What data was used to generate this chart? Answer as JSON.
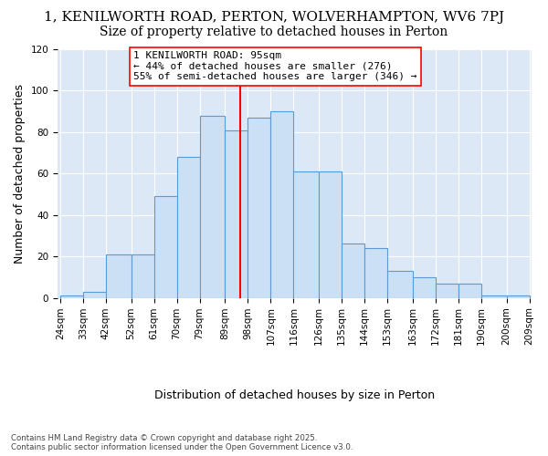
{
  "title_line1": "1, KENILWORTH ROAD, PERTON, WOLVERHAMPTON, WV6 7PJ",
  "title_line2": "Size of property relative to detached houses in Perton",
  "xlabel": "Distribution of detached houses by size in Perton",
  "ylabel": "Number of detached properties",
  "categories": [
    "24sqm",
    "33sqm",
    "42sqm",
    "52sqm",
    "61sqm",
    "70sqm",
    "79sqm",
    "89sqm",
    "98sqm",
    "107sqm",
    "116sqm",
    "126sqm",
    "135sqm",
    "144sqm",
    "153sqm",
    "163sqm",
    "172sqm",
    "181sqm",
    "190sqm",
    "200sqm",
    "209sqm"
  ],
  "bins": [
    24,
    33,
    42,
    52,
    61,
    70,
    79,
    89,
    98,
    107,
    116,
    126,
    135,
    144,
    153,
    163,
    172,
    181,
    190,
    200,
    209
  ],
  "heights": [
    1,
    3,
    21,
    21,
    49,
    68,
    88,
    81,
    87,
    90,
    61,
    61,
    26,
    24,
    13,
    10,
    7,
    7,
    1,
    1
  ],
  "bar_fill_color": "#cce0f5",
  "bar_edge_color": "#5b9bd5",
  "vertical_line_x": 95,
  "vertical_line_color": "red",
  "annotation_text": "1 KENILWORTH ROAD: 95sqm\n← 44% of detached houses are smaller (276)\n55% of semi-detached houses are larger (346) →",
  "annotation_box_color": "white",
  "annotation_box_edge": "red",
  "ylim": [
    0,
    120
  ],
  "yticks": [
    0,
    20,
    40,
    60,
    80,
    100,
    120
  ],
  "background_color": "#dce8f5",
  "footer_line1": "Contains HM Land Registry data © Crown copyright and database right 2025.",
  "footer_line2": "Contains public sector information licensed under the Open Government Licence v3.0.",
  "title_fontsize": 11,
  "subtitle_fontsize": 10,
  "axis_label_fontsize": 9,
  "tick_fontsize": 7.5,
  "annotation_fontsize": 8
}
